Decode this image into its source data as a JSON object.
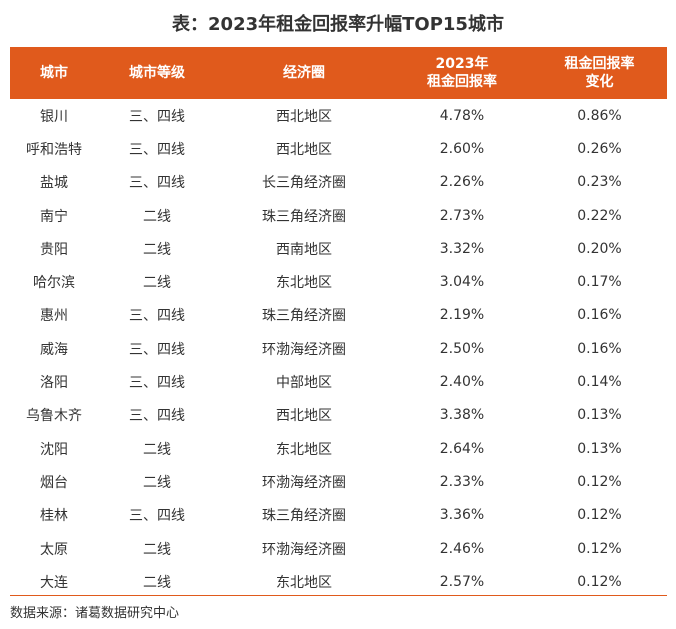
{
  "title": "表：2023年租金回报率升幅TOP15城市",
  "table": {
    "headers": [
      {
        "lines": [
          "城市"
        ]
      },
      {
        "lines": [
          "城市等级"
        ]
      },
      {
        "lines": [
          "经济圈"
        ]
      },
      {
        "lines": [
          "2023年",
          "租金回报率"
        ]
      },
      {
        "lines": [
          "租金回报率",
          "变化"
        ]
      }
    ],
    "rows": [
      [
        "银川",
        "三、四线",
        "西北地区",
        "4.78%",
        "0.86%"
      ],
      [
        "呼和浩特",
        "三、四线",
        "西北地区",
        "2.60%",
        "0.26%"
      ],
      [
        "盐城",
        "三、四线",
        "长三角经济圈",
        "2.26%",
        "0.23%"
      ],
      [
        "南宁",
        "二线",
        "珠三角经济圈",
        "2.73%",
        "0.22%"
      ],
      [
        "贵阳",
        "二线",
        "西南地区",
        "3.32%",
        "0.20%"
      ],
      [
        "哈尔滨",
        "二线",
        "东北地区",
        "3.04%",
        "0.17%"
      ],
      [
        "惠州",
        "三、四线",
        "珠三角经济圈",
        "2.19%",
        "0.16%"
      ],
      [
        "威海",
        "三、四线",
        "环渤海经济圈",
        "2.50%",
        "0.16%"
      ],
      [
        "洛阳",
        "三、四线",
        "中部地区",
        "2.40%",
        "0.14%"
      ],
      [
        "乌鲁木齐",
        "三、四线",
        "西北地区",
        "3.38%",
        "0.13%"
      ],
      [
        "沈阳",
        "二线",
        "东北地区",
        "2.64%",
        "0.13%"
      ],
      [
        "烟台",
        "二线",
        "环渤海经济圈",
        "2.33%",
        "0.12%"
      ],
      [
        "桂林",
        "三、四线",
        "珠三角经济圈",
        "3.36%",
        "0.12%"
      ],
      [
        "太原",
        "二线",
        "环渤海经济圈",
        "2.46%",
        "0.12%"
      ],
      [
        "大连",
        "二线",
        "东北地区",
        "2.57%",
        "0.12%"
      ]
    ]
  },
  "source": "数据来源：诸葛数据研究中心",
  "colors": {
    "header_bg": "#e05a1c",
    "header_text": "#ffffff",
    "body_text": "#333333"
  }
}
